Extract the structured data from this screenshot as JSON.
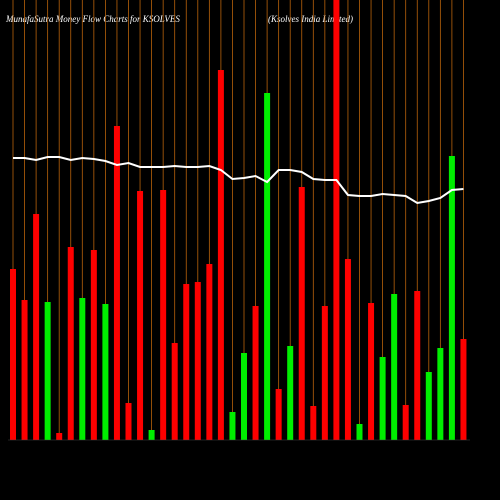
{
  "chart_data": {
    "type": "bar",
    "title": "MunafaSutra  Money Flow  Charts for KSOLVES",
    "subtitle": "(Ksolves India  Limited)",
    "categories": [
      null,
      null,
      null,
      null,
      null,
      null,
      null,
      null,
      null,
      null,
      null,
      null,
      null,
      null,
      null,
      null,
      null,
      null,
      null,
      null,
      null,
      null,
      null,
      null,
      null,
      null,
      null,
      null,
      null,
      null,
      null,
      null,
      null,
      null,
      null,
      null,
      null,
      null,
      null,
      null
    ],
    "series": [
      {
        "type": "bar",
        "values": [
          171,
          140,
          226,
          138,
          7,
          193,
          142,
          190,
          136,
          314,
          37,
          249,
          10,
          250,
          97,
          156,
          158,
          176,
          370,
          28,
          87,
          134,
          347,
          51,
          94,
          253,
          34,
          134,
          440,
          181,
          16,
          137,
          83,
          146,
          35,
          149,
          68,
          92,
          284,
          101
        ],
        "colors": [
          "#ff0000",
          "#ff0000",
          "#ff0000",
          "#00ee00",
          "#ff0000",
          "#ff0000",
          "#00ee00",
          "#ff0000",
          "#00ee00",
          "#ff0000",
          "#ff0000",
          "#ff0000",
          "#00ee00",
          "#ff0000",
          "#ff0000",
          "#ff0000",
          "#ff0000",
          "#ff0000",
          "#ff0000",
          "#00ee00",
          "#00ee00",
          "#ff0000",
          "#00ee00",
          "#ff0000",
          "#00ee00",
          "#ff0000",
          "#ff0000",
          "#ff0000",
          "#ff0000",
          "#ff0000",
          "#00ee00",
          "#ff0000",
          "#00ee00",
          "#00ee00",
          "#ff0000",
          "#ff0000",
          "#00ee00",
          "#00ee00",
          "#00ee00",
          "#ff0000"
        ]
      },
      {
        "type": "line",
        "color": "#ffffff",
        "values": [
          282,
          282,
          280,
          283,
          283,
          280,
          282,
          281,
          279,
          275,
          277,
          273,
          273,
          273,
          274,
          273,
          273,
          274,
          270,
          261,
          262,
          264,
          258,
          270,
          270,
          268,
          261,
          260,
          260,
          245,
          244,
          244,
          246,
          245,
          244,
          237,
          239,
          242,
          250,
          251
        ]
      }
    ],
    "grid_color": "#b8620b",
    "ylim": [
      0,
      440
    ]
  }
}
